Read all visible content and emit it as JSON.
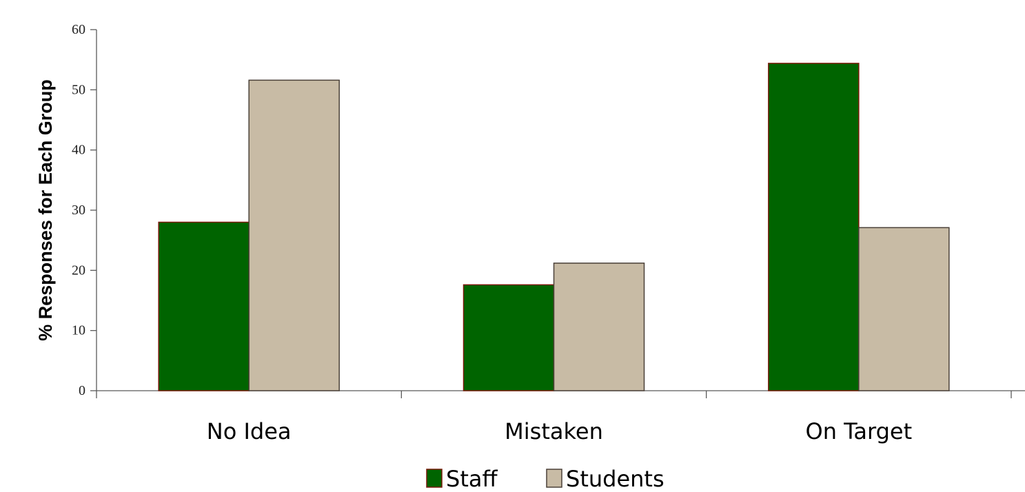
{
  "chart_data": {
    "type": "bar",
    "title": "",
    "xlabel": "",
    "ylabel": "% Responses for Each Group",
    "categories": [
      "No Idea",
      "Mistaken",
      "On Target"
    ],
    "series": [
      {
        "name": "Staff",
        "values": [
          28,
          17.6,
          54.4
        ],
        "color": "#006400",
        "stroke": "#7a1a0a"
      },
      {
        "name": "Students",
        "values": [
          51.6,
          21.2,
          27.1
        ],
        "color": "#c8bba5",
        "stroke": "#4a4038"
      }
    ],
    "ylim": [
      0,
      60
    ],
    "yticks": [
      "0",
      "10",
      "20",
      "30",
      "40",
      "50",
      "60"
    ],
    "grid": false,
    "legend_position": "bottom"
  }
}
